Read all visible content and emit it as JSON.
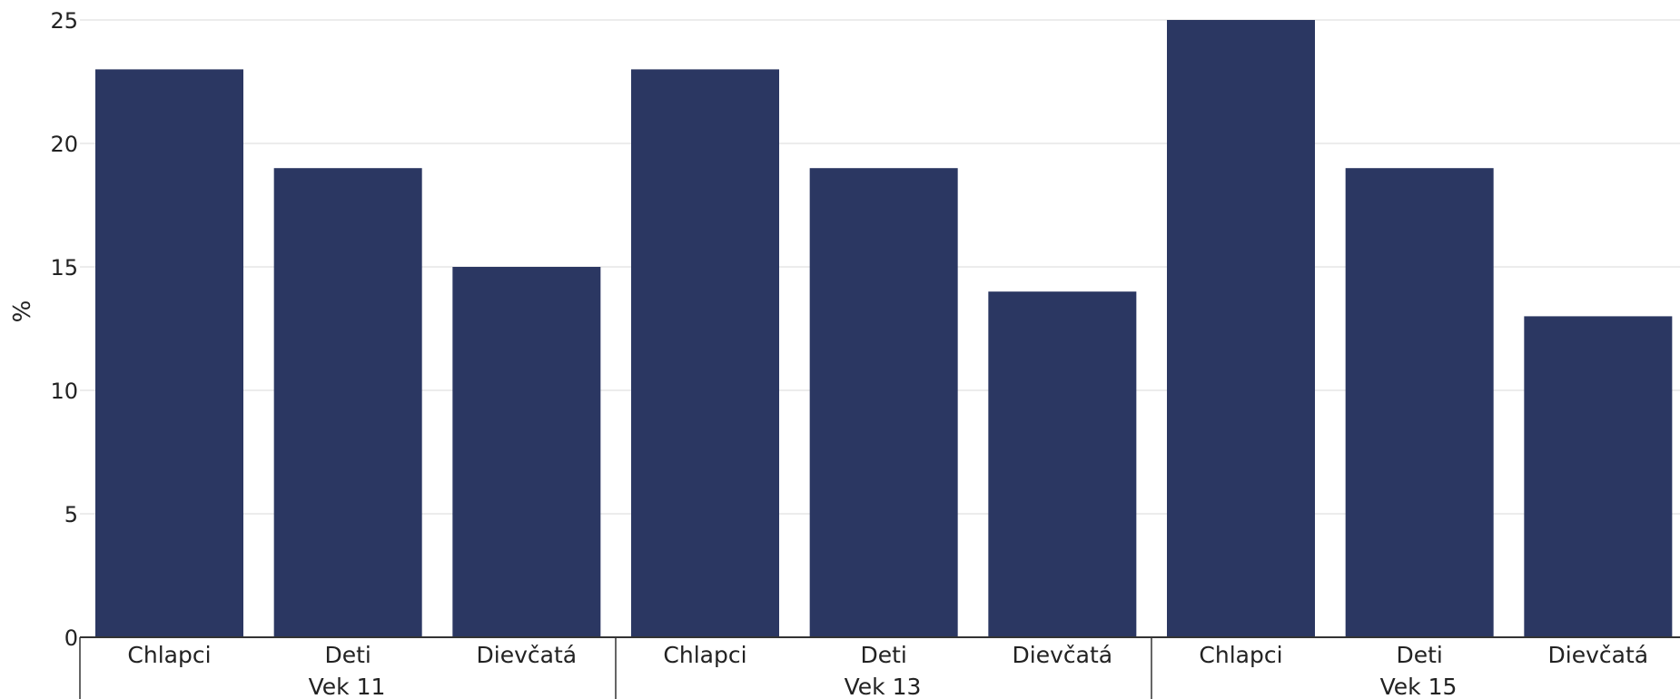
{
  "chart_data": {
    "type": "bar",
    "ylabel": "%",
    "xlabel": "",
    "ylim": [
      0,
      25
    ],
    "y_ticks": [
      0,
      5,
      10,
      15,
      20,
      25
    ],
    "grid": true,
    "groups": [
      {
        "label": "Vek 11",
        "categories": [
          "Chlapci",
          "Deti",
          "Dievčatá"
        ],
        "values": [
          23,
          19,
          15
        ]
      },
      {
        "label": "Vek 13",
        "categories": [
          "Chlapci",
          "Deti",
          "Dievčatá"
        ],
        "values": [
          23,
          19,
          14
        ]
      },
      {
        "label": "Vek 15",
        "categories": [
          "Chlapci",
          "Deti",
          "Dievčatá"
        ],
        "values": [
          25,
          19,
          13
        ]
      }
    ],
    "colors": {
      "bar": "#2b3762",
      "grid": "#e6e6e6",
      "axis": "#333333",
      "text": "#222222"
    }
  }
}
